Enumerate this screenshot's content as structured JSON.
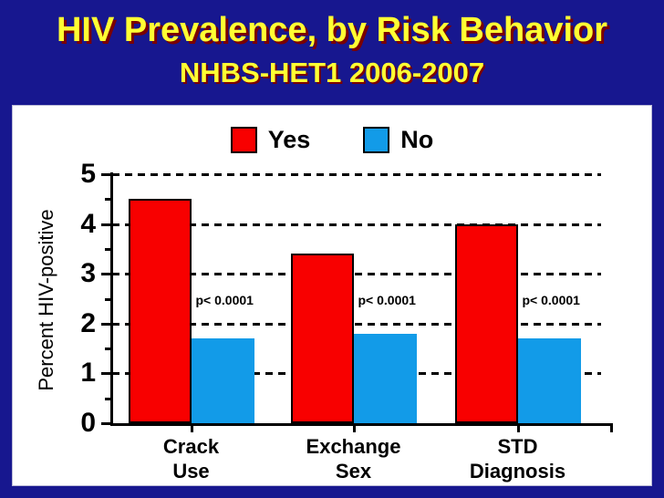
{
  "slide": {
    "title": "HIV Prevalence, by Risk Behavior",
    "subtitle": "NHBS-HET1 2006-2007"
  },
  "legend": [
    {
      "label": "Yes",
      "color": "#F80000"
    },
    {
      "label": "No",
      "color": "#129BE8"
    }
  ],
  "chart_data": {
    "type": "bar",
    "title": "HIV Prevalence, by Risk Behavior — NHBS-HET1 2006-2007",
    "ylabel": "Percent HIV-positive",
    "xlabel": "",
    "ylim": [
      0,
      5
    ],
    "y_major_ticks": [
      0,
      1,
      2,
      3,
      4,
      5
    ],
    "y_minor_step": 0.5,
    "grid": "horizontal dashed at integers",
    "legend_position": "top-center",
    "categories": [
      "Crack\nUse",
      "Exchange\nSex",
      "STD\nDiagnosis"
    ],
    "series": [
      {
        "name": "Yes",
        "color": "#F80000",
        "values": [
          4.5,
          3.4,
          4.0
        ]
      },
      {
        "name": "No",
        "color": "#129BE8",
        "values": [
          1.7,
          1.8,
          1.7
        ]
      }
    ],
    "annotations": [
      {
        "text": "p< 0.0001",
        "group": 0
      },
      {
        "text": "p< 0.0001",
        "group": 1
      },
      {
        "text": "p< 0.0001",
        "group": 2
      }
    ]
  },
  "colors": {
    "background": "#17178F",
    "title_text": "#FFFF33",
    "title_shadow": "#7B0000",
    "panel": "#FFFFFF",
    "axis": "#000000"
  }
}
